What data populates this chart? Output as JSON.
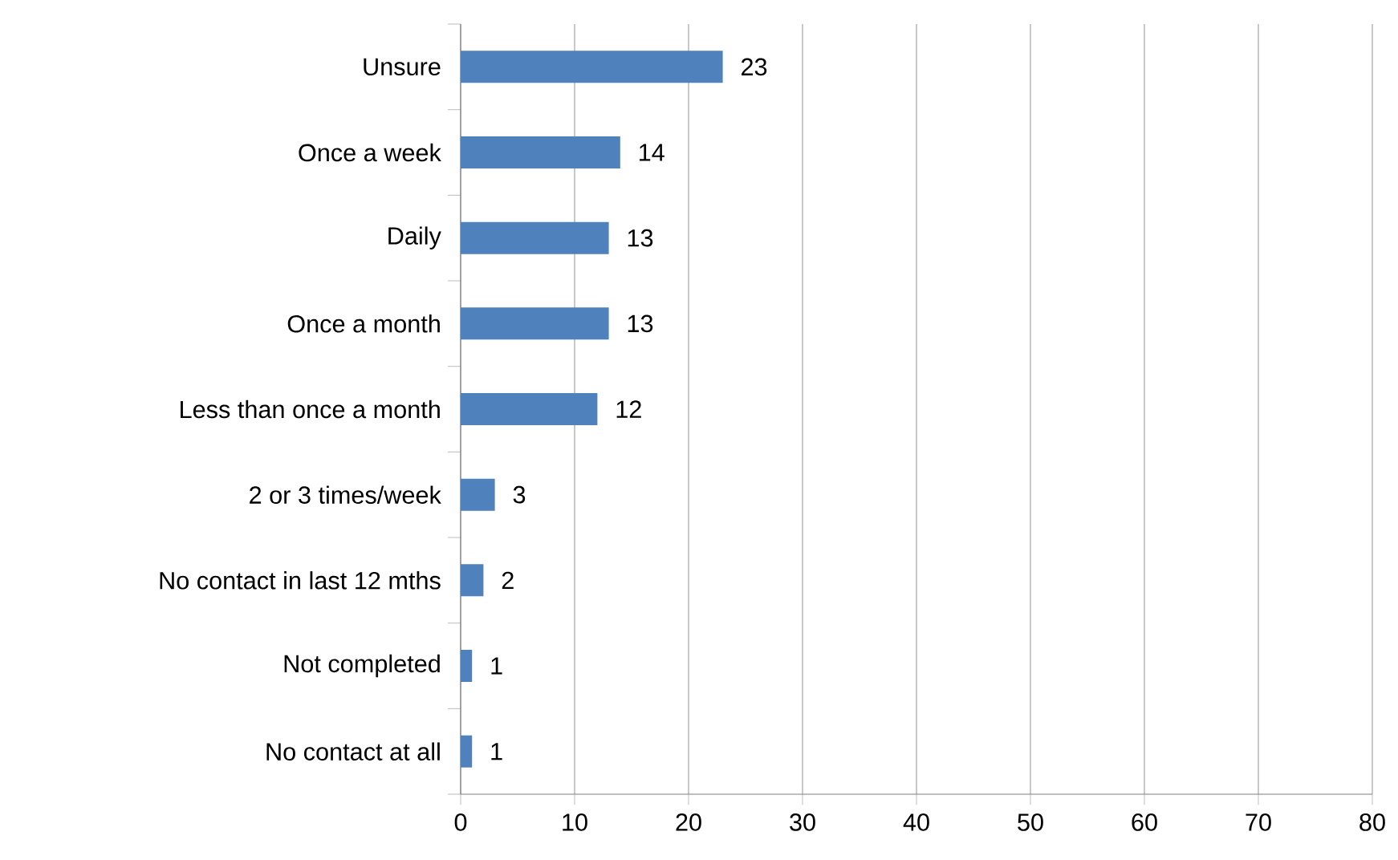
{
  "chart_data": {
    "type": "bar",
    "orientation": "horizontal",
    "categories": [
      "Unsure",
      "Once a week",
      "Daily",
      "Once a month",
      "Less than once a month",
      "2 or 3 times/week",
      "No contact in last 12 mths",
      "Not completed",
      "No contact at all"
    ],
    "values": [
      23,
      14,
      13,
      13,
      12,
      3,
      2,
      1,
      1
    ],
    "color": "#4f81bd",
    "xlim": [
      0,
      80
    ],
    "xticks": [
      0,
      10,
      20,
      30,
      40,
      50,
      60,
      70,
      80
    ],
    "grid": "x",
    "data_labels": true
  }
}
